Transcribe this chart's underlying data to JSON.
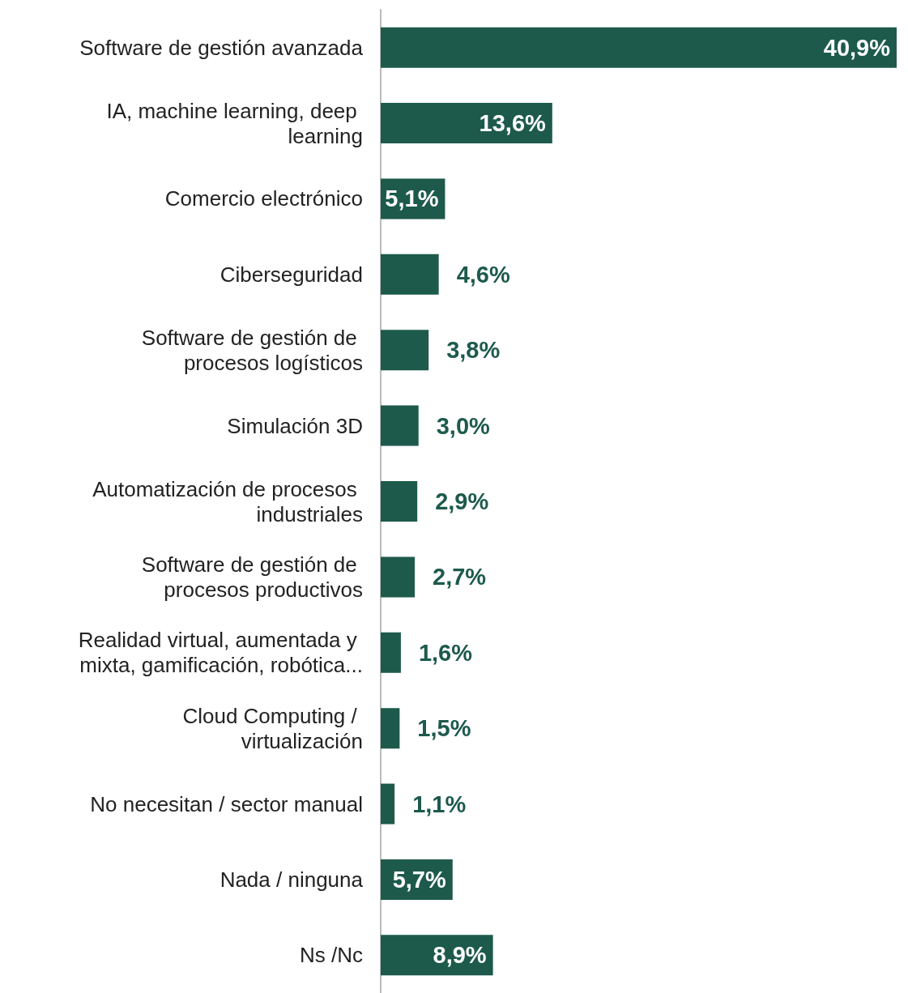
{
  "chart_data": {
    "type": "bar",
    "orientation": "horizontal",
    "color": "#1d5a4c",
    "categories": [
      "Software de gestión avanzada",
      "IA, machine learning, deep learning",
      "Comercio electrónico",
      "Ciberseguridad",
      "Software de gestión de procesos logísticos",
      "Simulación 3D",
      "Automatización de procesos industriales",
      "Software de gestión de procesos productivos",
      "Realidad virtual, aumentada y mixta, gamificación, robótica...",
      "Cloud Computing / virtualización",
      "No necesitan / sector manual",
      "Nada / ninguna",
      "Ns /Nc"
    ],
    "values": [
      40.9,
      13.6,
      5.1,
      4.6,
      3.8,
      3.0,
      2.9,
      2.7,
      1.6,
      1.5,
      1.1,
      5.7,
      8.9
    ],
    "value_labels": [
      "40,9%",
      "13,6%",
      "5,1%",
      "4,6%",
      "3,8%",
      "3,0%",
      "2,9%",
      "2,7%",
      "1,6%",
      "1,5%",
      "1,1%",
      "5,7%",
      "8,9%"
    ]
  }
}
